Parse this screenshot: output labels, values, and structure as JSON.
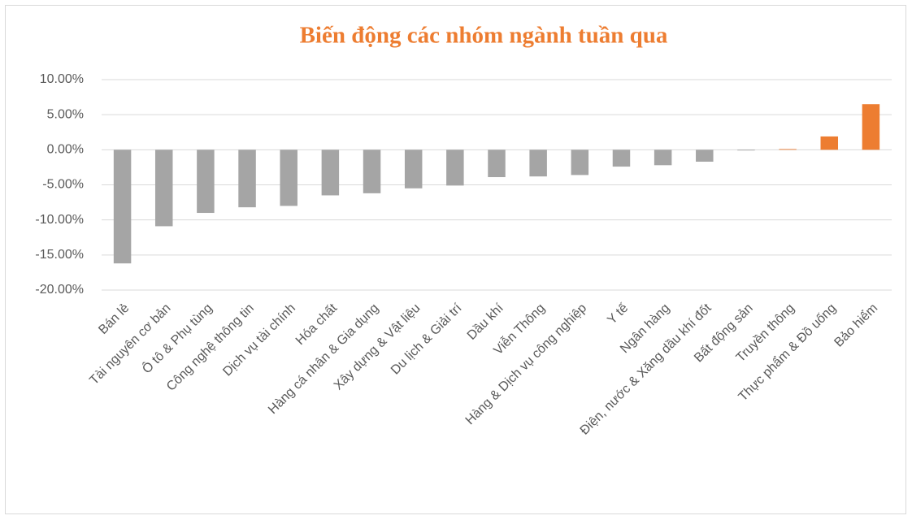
{
  "chart_data": {
    "type": "bar",
    "title": "Biến động các nhóm ngành tuần qua",
    "categories": [
      "Bán lẻ",
      "Tài nguyên cơ bản",
      "Ô tô & Phụ tùng",
      "Công nghệ thông tin",
      "Dịch vụ tài chính",
      "Hóa chất",
      "Hàng cá nhân & Gia dụng",
      "Xây dựng & Vật liệu",
      "Du lịch & Giải trí",
      "Dầu khí",
      "Viễn Thông",
      "Hàng & Dịch vụ công nghiệp",
      "Y tế",
      "Ngân hàng",
      "Điện, nước & Xăng dầu khí đốt",
      "Bất động sản",
      "Truyền thông",
      "Thực phẩm & Đồ uống",
      "Bảo hiểm"
    ],
    "values": [
      -16.2,
      -10.9,
      -9.0,
      -8.2,
      -8.0,
      -6.5,
      -6.2,
      -5.5,
      -5.1,
      -3.9,
      -3.8,
      -3.6,
      -2.4,
      -2.2,
      -1.7,
      -0.1,
      0.1,
      1.9,
      6.5
    ],
    "color_negative": "#a5a5a5",
    "color_positive": "#ed7d31",
    "ylim": [
      -20,
      10
    ],
    "yticks": [
      {
        "value": -20,
        "label": "-20.00%"
      },
      {
        "value": -15,
        "label": "-15.00%"
      },
      {
        "value": -10,
        "label": "-10.00%"
      },
      {
        "value": -5,
        "label": "-5.00%"
      },
      {
        "value": 0,
        "label": "0.00%"
      },
      {
        "value": 5,
        "label": "5.00%"
      },
      {
        "value": 10,
        "label": "10.00%"
      }
    ],
    "grid": true
  }
}
